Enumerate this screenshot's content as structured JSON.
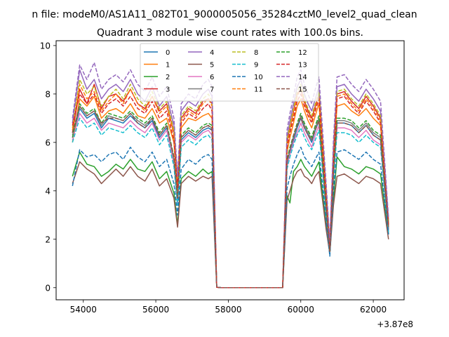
{
  "figure": {
    "suptitle": "n file: modeM0/AS1A11_082T01_9000005056_35284cztM0_level2_quad_clean",
    "title": "Quadrant 3 module wise count rates with 100.0s bins.",
    "x_offset_label": "+3.87e8"
  },
  "chart_data": {
    "type": "line",
    "title": "Quadrant 3 module wise count rates with 100.0s bins.",
    "xlabel": "",
    "ylabel": "",
    "x_offset": 387000000,
    "xlim": [
      53250,
      62850
    ],
    "ylim": [
      -0.5,
      10.2
    ],
    "xticks": [
      54000,
      56000,
      58000,
      60000,
      62000
    ],
    "yticks": [
      0,
      2,
      4,
      6,
      8,
      10
    ],
    "grid": false,
    "legend_position": "top-center",
    "legend_columns": 4,
    "x": [
      53700,
      53900,
      54100,
      54300,
      54500,
      54700,
      54900,
      55100,
      55300,
      55500,
      55700,
      55900,
      56100,
      56300,
      56500,
      56600,
      56700,
      56900,
      57100,
      57300,
      57450,
      57550,
      57680,
      57800,
      58000,
      58500,
      59000,
      59500,
      59620,
      59700,
      59800,
      59900,
      60000,
      60100,
      60200,
      60300,
      60400,
      60500,
      60600,
      60700,
      60800,
      60900,
      61000,
      61200,
      61400,
      61600,
      61800,
      62000,
      62200,
      62420
    ],
    "series": [
      {
        "name": "0",
        "color": "#1f77b4",
        "dash": "solid",
        "values": [
          6.2,
          7.4,
          7.0,
          7.2,
          6.6,
          7.0,
          6.9,
          6.8,
          7.1,
          6.8,
          6.6,
          6.9,
          6.2,
          6.6,
          5.2,
          3.4,
          6.1,
          6.4,
          6.2,
          6.5,
          6.6,
          6.5,
          0.02,
          0,
          0,
          0,
          0,
          0,
          5.1,
          5.6,
          6.1,
          6.6,
          7.0,
          6.6,
          6.3,
          6.0,
          6.5,
          6.9,
          5.0,
          3.2,
          1.4,
          4.6,
          6.8,
          6.8,
          6.7,
          6.4,
          6.7,
          6.3,
          6.1,
          2.4
        ]
      },
      {
        "name": "1",
        "color": "#ff7f0e",
        "dash": "solid",
        "values": [
          6.0,
          7.8,
          7.5,
          7.9,
          7.0,
          7.3,
          7.4,
          7.2,
          7.6,
          7.1,
          7.0,
          7.4,
          6.8,
          7.0,
          6.0,
          4.0,
          6.6,
          7.0,
          6.9,
          7.1,
          7.2,
          7.0,
          0.02,
          0,
          0,
          0,
          0,
          0,
          5.6,
          6.2,
          6.8,
          7.5,
          7.8,
          7.3,
          6.9,
          6.6,
          7.1,
          7.6,
          5.6,
          3.7,
          1.6,
          5.2,
          7.5,
          7.6,
          7.3,
          7.1,
          7.4,
          7.0,
          6.7,
          2.6
        ]
      },
      {
        "name": "2",
        "color": "#2ca02c",
        "dash": "solid",
        "values": [
          4.6,
          5.6,
          5.1,
          5.0,
          4.6,
          4.8,
          5.1,
          4.9,
          5.3,
          4.9,
          4.8,
          5.2,
          4.5,
          4.8,
          3.9,
          2.6,
          4.5,
          4.8,
          4.6,
          4.9,
          4.7,
          4.8,
          0.02,
          0,
          0,
          0,
          0,
          0,
          3.8,
          3.5,
          4.8,
          5.0,
          5.3,
          5.0,
          4.8,
          4.6,
          4.9,
          5.2,
          3.9,
          2.6,
          1.4,
          3.6,
          5.4,
          5.0,
          4.9,
          4.7,
          5.0,
          4.9,
          4.7,
          2.2
        ]
      },
      {
        "name": "3",
        "color": "#d62728",
        "dash": "solid",
        "values": [
          6.4,
          8.2,
          7.6,
          8.4,
          7.4,
          7.9,
          8.0,
          7.7,
          8.2,
          7.6,
          7.4,
          7.9,
          7.3,
          7.6,
          6.4,
          4.2,
          7.0,
          7.4,
          7.2,
          7.7,
          7.8,
          7.6,
          0.02,
          0,
          0,
          0,
          0,
          0,
          6.0,
          6.6,
          7.3,
          8.0,
          8.2,
          7.7,
          7.3,
          7.0,
          7.5,
          8.0,
          6.0,
          3.9,
          1.7,
          5.5,
          8.0,
          8.1,
          7.7,
          7.4,
          7.9,
          7.5,
          7.0,
          2.7
        ]
      },
      {
        "name": "4",
        "color": "#9467bd",
        "dash": "solid",
        "values": [
          6.8,
          9.0,
          8.2,
          8.6,
          7.8,
          8.2,
          8.4,
          8.1,
          8.6,
          8.0,
          7.7,
          8.3,
          7.5,
          7.9,
          6.7,
          4.4,
          7.3,
          7.7,
          7.5,
          8.0,
          8.2,
          7.9,
          0.02,
          0,
          0,
          0,
          0,
          0,
          6.2,
          6.9,
          7.6,
          8.3,
          8.6,
          8.0,
          7.6,
          7.3,
          7.8,
          8.3,
          6.2,
          4.1,
          1.8,
          5.8,
          8.3,
          8.4,
          8.0,
          7.7,
          8.2,
          7.8,
          7.3,
          2.8
        ]
      },
      {
        "name": "5",
        "color": "#8c564b",
        "dash": "solid",
        "values": [
          4.3,
          5.2,
          4.9,
          4.7,
          4.3,
          4.6,
          4.9,
          4.6,
          5.0,
          4.6,
          4.4,
          4.9,
          4.2,
          4.5,
          3.7,
          2.5,
          4.3,
          4.6,
          4.4,
          4.6,
          4.5,
          4.6,
          0.02,
          0,
          0,
          0,
          0,
          0,
          3.6,
          4.0,
          4.5,
          4.8,
          4.9,
          4.6,
          4.5,
          4.3,
          4.6,
          4.8,
          3.6,
          2.4,
          1.4,
          3.4,
          4.6,
          4.7,
          4.5,
          4.3,
          4.6,
          4.5,
          4.3,
          2.0
        ]
      },
      {
        "name": "6",
        "color": "#e377c2",
        "dash": "solid",
        "values": [
          6.1,
          7.2,
          6.8,
          7.0,
          6.5,
          6.8,
          6.7,
          6.6,
          6.9,
          6.6,
          6.4,
          6.8,
          6.1,
          6.5,
          5.1,
          3.5,
          6.0,
          6.3,
          6.1,
          6.4,
          6.5,
          6.3,
          0.02,
          0,
          0,
          0,
          0,
          0,
          5.0,
          5.5,
          6.0,
          6.4,
          6.8,
          6.4,
          6.1,
          5.8,
          6.3,
          6.7,
          4.9,
          3.1,
          1.4,
          4.5,
          6.6,
          6.6,
          6.5,
          6.2,
          6.5,
          6.1,
          5.9,
          2.3
        ]
      },
      {
        "name": "7",
        "color": "#7f7f7f",
        "dash": "solid",
        "values": [
          6.3,
          7.5,
          7.1,
          7.3,
          6.7,
          7.1,
          7.0,
          6.9,
          7.2,
          6.9,
          6.7,
          7.0,
          6.3,
          6.7,
          5.3,
          3.6,
          6.2,
          6.5,
          6.3,
          6.6,
          6.7,
          6.6,
          0.02,
          0,
          0,
          0,
          0,
          0,
          5.2,
          5.7,
          6.2,
          6.7,
          7.1,
          6.7,
          6.4,
          6.1,
          6.6,
          7.0,
          5.1,
          3.3,
          1.5,
          4.7,
          6.9,
          6.9,
          6.8,
          6.5,
          6.8,
          6.4,
          6.2,
          2.4
        ]
      },
      {
        "name": "8",
        "color": "#bcbd22",
        "dash": "dashed",
        "values": [
          6.6,
          8.6,
          8.0,
          8.3,
          7.5,
          7.9,
          8.2,
          7.8,
          8.4,
          7.8,
          7.5,
          8.1,
          7.4,
          7.7,
          6.5,
          4.3,
          7.1,
          7.5,
          7.3,
          7.8,
          8.0,
          7.7,
          0.02,
          0,
          0,
          0,
          0,
          0,
          6.1,
          6.7,
          7.4,
          8.1,
          8.4,
          7.8,
          7.4,
          7.1,
          7.6,
          8.1,
          6.1,
          4.0,
          1.7,
          5.6,
          8.1,
          8.2,
          7.8,
          7.5,
          8.0,
          7.6,
          7.1,
          2.7
        ]
      },
      {
        "name": "9",
        "color": "#17becf",
        "dash": "dashed",
        "values": [
          6.0,
          7.0,
          6.6,
          6.8,
          6.3,
          6.6,
          6.5,
          6.4,
          6.7,
          6.4,
          6.2,
          6.6,
          5.9,
          6.3,
          5.0,
          3.4,
          5.8,
          6.1,
          5.9,
          6.2,
          6.3,
          6.1,
          0.02,
          0,
          0,
          0,
          0,
          0,
          4.9,
          5.4,
          5.9,
          6.3,
          6.6,
          6.2,
          5.9,
          5.7,
          6.1,
          6.5,
          4.8,
          3.0,
          1.4,
          4.4,
          6.4,
          6.4,
          6.3,
          6.0,
          6.3,
          6.0,
          5.8,
          2.3
        ]
      },
      {
        "name": "10",
        "color": "#1f77b4",
        "dash": "dashed",
        "values": [
          4.2,
          5.7,
          5.4,
          5.5,
          5.2,
          5.5,
          5.6,
          5.3,
          5.8,
          5.4,
          5.2,
          5.6,
          5.0,
          5.3,
          4.3,
          3.0,
          4.9,
          5.3,
          5.1,
          5.4,
          5.5,
          5.3,
          0.02,
          0,
          0,
          0,
          0,
          0,
          4.1,
          4.6,
          5.1,
          5.5,
          5.8,
          5.4,
          5.2,
          5.0,
          5.3,
          5.6,
          4.2,
          2.8,
          1.3,
          4.0,
          5.6,
          5.7,
          5.5,
          5.3,
          5.6,
          5.3,
          5.1,
          2.2
        ]
      },
      {
        "name": "11",
        "color": "#ff7f0e",
        "dash": "dashed",
        "values": [
          6.5,
          8.4,
          7.8,
          8.1,
          7.3,
          7.7,
          8.0,
          7.6,
          8.2,
          7.6,
          7.3,
          7.9,
          7.2,
          7.5,
          6.3,
          4.2,
          6.9,
          7.3,
          7.1,
          7.6,
          7.8,
          7.5,
          0.02,
          0,
          0,
          0,
          0,
          0,
          5.9,
          6.5,
          7.2,
          7.9,
          8.2,
          7.6,
          7.2,
          6.9,
          7.4,
          7.9,
          5.9,
          3.9,
          1.7,
          5.4,
          7.9,
          8.0,
          7.6,
          7.3,
          7.8,
          7.4,
          6.9,
          2.6
        ]
      },
      {
        "name": "12",
        "color": "#2ca02c",
        "dash": "dashed",
        "values": [
          6.2,
          7.6,
          7.2,
          7.4,
          6.8,
          7.2,
          7.1,
          7.0,
          7.3,
          7.0,
          6.8,
          7.1,
          6.4,
          6.8,
          5.4,
          3.7,
          6.3,
          6.6,
          6.4,
          6.7,
          6.8,
          6.7,
          0.02,
          0,
          0,
          0,
          0,
          0,
          5.3,
          5.8,
          6.3,
          6.8,
          7.2,
          6.8,
          6.5,
          6.2,
          6.7,
          7.1,
          5.2,
          3.4,
          1.5,
          4.8,
          7.0,
          7.0,
          6.9,
          6.6,
          6.9,
          6.5,
          6.3,
          2.5
        ]
      },
      {
        "name": "13",
        "color": "#d62728",
        "dash": "dashed",
        "values": [
          6.7,
          8.0,
          7.6,
          8.0,
          7.2,
          7.6,
          7.8,
          7.5,
          7.9,
          7.4,
          7.2,
          7.7,
          7.0,
          7.3,
          6.1,
          4.1,
          6.8,
          7.2,
          7.0,
          7.4,
          7.6,
          7.3,
          0.02,
          0,
          0,
          0,
          0,
          0,
          5.8,
          6.4,
          7.0,
          7.7,
          8.0,
          7.5,
          7.1,
          6.8,
          7.3,
          7.8,
          5.8,
          3.8,
          1.6,
          5.3,
          7.8,
          7.9,
          7.5,
          7.2,
          7.7,
          7.3,
          6.8,
          2.6
        ]
      },
      {
        "name": "14",
        "color": "#9467bd",
        "dash": "dashed",
        "values": [
          7.0,
          9.2,
          8.6,
          9.3,
          8.2,
          8.6,
          8.8,
          8.5,
          9.0,
          8.4,
          8.1,
          8.7,
          7.9,
          8.3,
          7.0,
          4.6,
          7.6,
          8.0,
          7.8,
          8.4,
          8.6,
          8.3,
          0.02,
          0,
          0,
          0,
          0,
          0,
          6.5,
          7.2,
          7.9,
          8.7,
          9.0,
          8.4,
          8.0,
          7.6,
          8.2,
          8.7,
          6.5,
          4.3,
          1.9,
          6.1,
          8.7,
          8.8,
          8.4,
          8.1,
          8.6,
          8.2,
          7.7,
          2.9
        ]
      },
      {
        "name": "15",
        "color": "#8c564b",
        "dash": "dashed",
        "values": [
          6.4,
          7.5,
          7.1,
          7.3,
          6.8,
          7.0,
          7.0,
          6.9,
          7.2,
          6.8,
          6.6,
          7.0,
          6.3,
          6.7,
          5.4,
          3.7,
          6.2,
          6.5,
          6.3,
          6.6,
          6.7,
          6.5,
          0.02,
          0,
          0,
          0,
          0,
          0,
          5.2,
          5.7,
          6.3,
          6.7,
          7.0,
          6.6,
          6.3,
          6.1,
          6.5,
          6.9,
          5.1,
          3.3,
          1.5,
          4.7,
          6.8,
          6.8,
          6.7,
          6.4,
          6.7,
          6.3,
          6.1,
          2.5
        ]
      }
    ]
  }
}
